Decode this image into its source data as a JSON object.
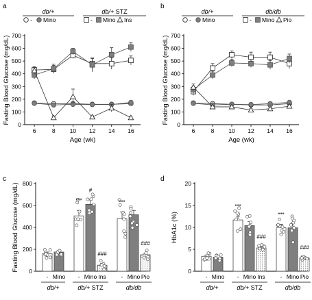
{
  "chart_data": [
    {
      "panel": "a",
      "type": "line",
      "header_groups": [
        "db/+",
        "db/+ STZ"
      ],
      "legend_a": [
        "-",
        "Mino"
      ],
      "legend_b": [
        "-",
        "Mino",
        "Ins"
      ],
      "x": [
        6,
        8,
        10,
        12,
        14,
        16
      ],
      "xlabel": "Age (wk)",
      "ylabel": "Fasting Blood Glucose (mg/dL)",
      "ylim": [
        0,
        700
      ],
      "yticks": [
        0,
        100,
        200,
        300,
        400,
        500,
        600,
        700
      ],
      "series": [
        {
          "marker": "circle-open",
          "values": [
            170,
            165,
            165,
            160,
            160,
            165
          ],
          "err": [
            8,
            8,
            8,
            8,
            8,
            8
          ]
        },
        {
          "marker": "circle-filled",
          "values": [
            168,
            155,
            160,
            158,
            158,
            175
          ],
          "err": [
            8,
            8,
            8,
            8,
            8,
            10
          ]
        },
        {
          "marker": "square-open",
          "values": [
            430,
            435,
            545,
            480,
            480,
            505
          ],
          "err": [
            25,
            30,
            25,
            40,
            45,
            35
          ]
        },
        {
          "marker": "square-filled",
          "values": [
            390,
            440,
            575,
            470,
            550,
            610
          ],
          "err": [
            30,
            35,
            25,
            55,
            55,
            35
          ]
        },
        {
          "marker": "triangle-open",
          "values": [
            425,
            55,
            220,
            60,
            130,
            55
          ],
          "err": [
            25,
            10,
            60,
            10,
            30,
            10
          ]
        }
      ]
    },
    {
      "panel": "b",
      "type": "line",
      "header_groups": [
        "db/+",
        "db/db"
      ],
      "legend_a": [
        "-",
        "Mino"
      ],
      "legend_b": [
        "-",
        "Mino",
        "Pio"
      ],
      "x": [
        6,
        8,
        10,
        12,
        14,
        16
      ],
      "xlabel": "Age (wk)",
      "ylabel": "Fasting Blood Glucose (mg/dL)",
      "ylim": [
        0,
        700
      ],
      "yticks": [
        0,
        100,
        200,
        300,
        400,
        500,
        600,
        700
      ],
      "series": [
        {
          "marker": "circle-open",
          "values": [
            170,
            165,
            160,
            155,
            155,
            165
          ],
          "err": [
            8,
            8,
            8,
            8,
            8,
            8
          ]
        },
        {
          "marker": "circle-filled",
          "values": [
            168,
            155,
            160,
            158,
            165,
            175
          ],
          "err": [
            8,
            8,
            8,
            8,
            8,
            8
          ]
        },
        {
          "marker": "square-open",
          "values": [
            260,
            445,
            550,
            530,
            530,
            480
          ],
          "err": [
            30,
            35,
            30,
            40,
            40,
            40
          ]
        },
        {
          "marker": "square-filled",
          "values": [
            275,
            390,
            485,
            480,
            470,
            520
          ],
          "err": [
            30,
            30,
            30,
            30,
            35,
            35
          ]
        },
        {
          "marker": "triangle-open",
          "values": [
            295,
            140,
            140,
            115,
            125,
            145
          ],
          "err": [
            25,
            12,
            12,
            10,
            10,
            12
          ]
        }
      ]
    },
    {
      "panel": "c",
      "type": "bar",
      "ylabel": "Fasting Blood Glucose (mg/dL)",
      "ylim": [
        0,
        800
      ],
      "yticks": [
        0,
        200,
        400,
        600,
        800
      ],
      "bars": [
        {
          "label": "-",
          "value": 160,
          "err": 15,
          "fill": "white"
        },
        {
          "label": "Mino",
          "value": 175,
          "err": 10,
          "fill": "gray"
        },
        {
          "label": "-",
          "value": 505,
          "err": 50,
          "fill": "white"
        },
        {
          "label": "Mino",
          "value": 610,
          "err": 40,
          "fill": "gray"
        },
        {
          "label": "Ins",
          "value": 55,
          "err": 15,
          "fill": "hatch"
        },
        {
          "label": "-",
          "value": 480,
          "err": 60,
          "fill": "white"
        },
        {
          "label": "Mino",
          "value": 515,
          "err": 40,
          "fill": "gray"
        },
        {
          "label": "Pio",
          "value": 150,
          "err": 15,
          "fill": "hatch"
        }
      ],
      "groups": [
        "db/+",
        "db/+ STZ",
        "db/db"
      ],
      "annotations": [
        {
          "bar": 2,
          "text": "***"
        },
        {
          "bar": 3,
          "text": "#"
        },
        {
          "bar": 4,
          "text": "###"
        },
        {
          "bar": 5,
          "text": "***"
        },
        {
          "bar": 7,
          "text": "###"
        }
      ]
    },
    {
      "panel": "d",
      "type": "bar",
      "ylabel": "HbA1c (%)",
      "ylim": [
        0,
        20
      ],
      "yticks": [
        0,
        5,
        10,
        15,
        20
      ],
      "bars": [
        {
          "label": "-",
          "value": 3.4,
          "err": 0.3,
          "fill": "white"
        },
        {
          "label": "Mino",
          "value": 3.2,
          "err": 0.3,
          "fill": "gray"
        },
        {
          "label": "-",
          "value": 11.7,
          "err": 0.9,
          "fill": "white"
        },
        {
          "label": "Mino",
          "value": 10.4,
          "err": 0.9,
          "fill": "gray"
        },
        {
          "label": "Ins",
          "value": 5.3,
          "err": 0.3,
          "fill": "hatch"
        },
        {
          "label": "-",
          "value": 9.9,
          "err": 0.8,
          "fill": "white"
        },
        {
          "label": "Mino",
          "value": 9.9,
          "err": 1.1,
          "fill": "gray"
        },
        {
          "label": "Pio",
          "value": 3.0,
          "err": 0.2,
          "fill": "hatch"
        }
      ],
      "groups": [
        "db/+",
        "db/+ STZ",
        "db/db"
      ],
      "annotations": [
        {
          "bar": 2,
          "text": "***"
        },
        {
          "bar": 4,
          "text": "###"
        },
        {
          "bar": 5,
          "text": "***"
        },
        {
          "bar": 7,
          "text": "###"
        }
      ]
    }
  ]
}
